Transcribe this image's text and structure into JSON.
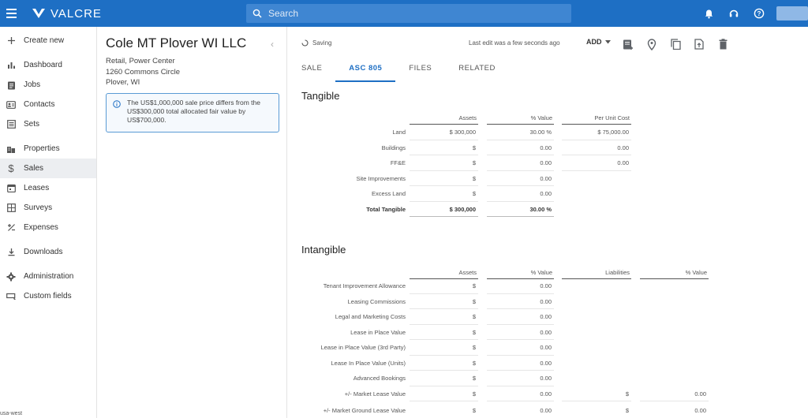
{
  "app": {
    "brand": "VALCRE",
    "search_placeholder": "Search",
    "region": "usa-west"
  },
  "sidebar": {
    "items": [
      {
        "label": "Create new",
        "icon": "plus-icon"
      },
      {
        "label": "Dashboard",
        "icon": "bar-chart-icon"
      },
      {
        "label": "Jobs",
        "icon": "clipboard-icon"
      },
      {
        "label": "Contacts",
        "icon": "contact-card-icon"
      },
      {
        "label": "Sets",
        "icon": "list-box-icon"
      },
      {
        "label": "Properties",
        "icon": "building-icon"
      },
      {
        "label": "Sales",
        "icon": "dollar-icon"
      },
      {
        "label": "Leases",
        "icon": "calendar-icon"
      },
      {
        "label": "Surveys",
        "icon": "grid-icon"
      },
      {
        "label": "Expenses",
        "icon": "plus-minus-icon"
      },
      {
        "label": "Downloads",
        "icon": "download-icon"
      },
      {
        "label": "Administration",
        "icon": "gear-icon"
      },
      {
        "label": "Custom fields",
        "icon": "custom-field-icon"
      }
    ],
    "active": "Sales"
  },
  "deal": {
    "title": "Cole MT Plover WI LLC",
    "type": "Retail, Power Center",
    "address": "1260 Commons Circle",
    "city": "Plover, WI",
    "alert": "The US$1,000,000 sale price differs from the US$300,000 total allocated fair value by US$700,000."
  },
  "toolbar": {
    "status": "Saving",
    "last_edit": "Last edit was a few seconds ago",
    "add_label": "ADD"
  },
  "tabs": [
    {
      "label": "SALE"
    },
    {
      "label": "ASC 805"
    },
    {
      "label": "FILES"
    },
    {
      "label": "RELATED"
    }
  ],
  "active_tab": "ASC 805",
  "tangible": {
    "title": "Tangible",
    "headers": {
      "assets": "Assets",
      "pct": "% Value",
      "per_unit": "Per Unit Cost"
    },
    "rows": [
      {
        "label": "Land",
        "assets": "$ 300,000",
        "pct": "30.00 %",
        "per_unit": "$ 75,000.00"
      },
      {
        "label": "Buildings",
        "assets": "$",
        "pct": "0.00",
        "per_unit": "0.00"
      },
      {
        "label": "FF&E",
        "assets": "$",
        "pct": "0.00",
        "per_unit": "0.00"
      },
      {
        "label": "Site Improvements",
        "assets": "$",
        "pct": "0.00",
        "per_unit": ""
      },
      {
        "label": "Excess Land",
        "assets": "$",
        "pct": "0.00",
        "per_unit": ""
      }
    ],
    "total": {
      "label": "Total Tangible",
      "assets": "$ 300,000",
      "pct": "30.00 %"
    }
  },
  "intangible": {
    "title": "Intangible",
    "headers": {
      "assets": "Assets",
      "pct": "% Value",
      "liabilities": "Liabilities",
      "pct2": "% Value"
    },
    "rows": [
      {
        "label": "Tenant Improvement Allowance",
        "assets": "$",
        "pct": "0.00",
        "liab": "",
        "pct2": ""
      },
      {
        "label": "Leasing Commissions",
        "assets": "$",
        "pct": "0.00",
        "liab": "",
        "pct2": ""
      },
      {
        "label": "Legal and Marketing Costs",
        "assets": "$",
        "pct": "0.00",
        "liab": "",
        "pct2": ""
      },
      {
        "label": "Lease in Place Value",
        "assets": "$",
        "pct": "0.00",
        "liab": "",
        "pct2": ""
      },
      {
        "label": "Lease in Place Value (3rd Party)",
        "assets": "$",
        "pct": "0.00",
        "liab": "",
        "pct2": ""
      },
      {
        "label": "Lease In Place Value (Units)",
        "assets": "$",
        "pct": "0.00",
        "liab": "",
        "pct2": ""
      },
      {
        "label": "Advanced Bookings",
        "assets": "$",
        "pct": "0.00",
        "liab": "",
        "pct2": ""
      },
      {
        "label": "+/- Market Lease Value",
        "assets": "$",
        "pct": "0.00",
        "liab": "$",
        "pct2": "0.00"
      },
      {
        "label": "+/- Market Ground Lease Value",
        "assets": "$",
        "pct": "0.00",
        "liab": "$",
        "pct2": "0.00"
      }
    ]
  }
}
